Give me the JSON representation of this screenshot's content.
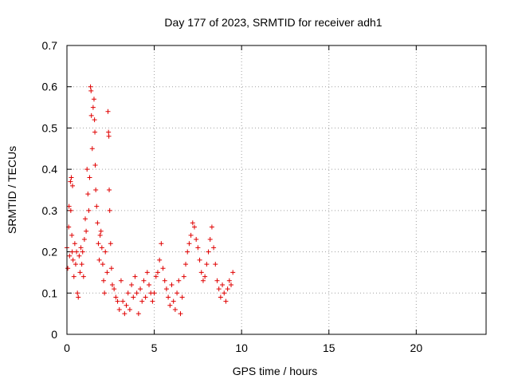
{
  "chart_data": {
    "type": "scatter",
    "title": "Day 177 of 2023, SRMTID for receiver adh1",
    "xlabel": "GPS time / hours",
    "ylabel": "SRMTID / TECUs",
    "xlim": [
      0,
      24
    ],
    "ylim": [
      0,
      0.7
    ],
    "xticks": [
      0,
      5,
      10,
      15,
      20
    ],
    "yticks": [
      0,
      0.1,
      0.2,
      0.3,
      0.4,
      0.5,
      0.6,
      0.7
    ],
    "xtick_labels": [
      "0",
      "5",
      "10",
      "15",
      "20"
    ],
    "ytick_labels": [
      "0",
      "0.1",
      "0.2",
      "0.3",
      "0.4",
      "0.5",
      "0.6",
      "0.7"
    ],
    "grid": true,
    "marker": "+",
    "color": "#e00000",
    "series": [
      {
        "name": "adh1",
        "points": [
          [
            0.0,
            0.21
          ],
          [
            0.05,
            0.16
          ],
          [
            0.1,
            0.26
          ],
          [
            0.12,
            0.31
          ],
          [
            0.15,
            0.19
          ],
          [
            0.2,
            0.37
          ],
          [
            0.22,
            0.3
          ],
          [
            0.25,
            0.38
          ],
          [
            0.28,
            0.24
          ],
          [
            0.3,
            0.2
          ],
          [
            0.32,
            0.36
          ],
          [
            0.35,
            0.18
          ],
          [
            0.4,
            0.14
          ],
          [
            0.45,
            0.22
          ],
          [
            0.5,
            0.17
          ],
          [
            0.55,
            0.2
          ],
          [
            0.6,
            0.1
          ],
          [
            0.65,
            0.09
          ],
          [
            0.7,
            0.19
          ],
          [
            0.75,
            0.15
          ],
          [
            0.8,
            0.21
          ],
          [
            0.85,
            0.17
          ],
          [
            0.9,
            0.2
          ],
          [
            0.95,
            0.14
          ],
          [
            1.0,
            0.23
          ],
          [
            1.05,
            0.28
          ],
          [
            1.1,
            0.25
          ],
          [
            1.15,
            0.4
          ],
          [
            1.2,
            0.34
          ],
          [
            1.25,
            0.3
          ],
          [
            1.3,
            0.38
          ],
          [
            1.35,
            0.6
          ],
          [
            1.38,
            0.59
          ],
          [
            1.4,
            0.53
          ],
          [
            1.45,
            0.45
          ],
          [
            1.5,
            0.55
          ],
          [
            1.55,
            0.57
          ],
          [
            1.58,
            0.52
          ],
          [
            1.6,
            0.49
          ],
          [
            1.62,
            0.41
          ],
          [
            1.65,
            0.35
          ],
          [
            1.7,
            0.31
          ],
          [
            1.75,
            0.27
          ],
          [
            1.8,
            0.22
          ],
          [
            1.85,
            0.18
          ],
          [
            1.9,
            0.24
          ],
          [
            1.95,
            0.25
          ],
          [
            2.0,
            0.21
          ],
          [
            2.05,
            0.17
          ],
          [
            2.1,
            0.13
          ],
          [
            2.15,
            0.1
          ],
          [
            2.2,
            0.2
          ],
          [
            2.3,
            0.15
          ],
          [
            2.35,
            0.54
          ],
          [
            2.38,
            0.49
          ],
          [
            2.4,
            0.48
          ],
          [
            2.42,
            0.35
          ],
          [
            2.45,
            0.3
          ],
          [
            2.5,
            0.22
          ],
          [
            2.55,
            0.16
          ],
          [
            2.6,
            0.12
          ],
          [
            2.7,
            0.11
          ],
          [
            2.8,
            0.09
          ],
          [
            2.9,
            0.08
          ],
          [
            3.0,
            0.06
          ],
          [
            3.1,
            0.13
          ],
          [
            3.2,
            0.08
          ],
          [
            3.3,
            0.05
          ],
          [
            3.4,
            0.07
          ],
          [
            3.5,
            0.1
          ],
          [
            3.6,
            0.06
          ],
          [
            3.7,
            0.12
          ],
          [
            3.8,
            0.09
          ],
          [
            3.9,
            0.14
          ],
          [
            4.0,
            0.1
          ],
          [
            4.1,
            0.05
          ],
          [
            4.2,
            0.11
          ],
          [
            4.3,
            0.08
          ],
          [
            4.4,
            0.13
          ],
          [
            4.5,
            0.09
          ],
          [
            4.6,
            0.15
          ],
          [
            4.7,
            0.12
          ],
          [
            4.8,
            0.1
          ],
          [
            4.9,
            0.08
          ],
          [
            5.0,
            0.1
          ],
          [
            5.1,
            0.14
          ],
          [
            5.2,
            0.15
          ],
          [
            5.3,
            0.18
          ],
          [
            5.4,
            0.22
          ],
          [
            5.5,
            0.16
          ],
          [
            5.6,
            0.13
          ],
          [
            5.7,
            0.11
          ],
          [
            5.8,
            0.09
          ],
          [
            5.9,
            0.07
          ],
          [
            6.0,
            0.12
          ],
          [
            6.1,
            0.08
          ],
          [
            6.2,
            0.06
          ],
          [
            6.3,
            0.1
          ],
          [
            6.4,
            0.13
          ],
          [
            6.5,
            0.05
          ],
          [
            6.6,
            0.09
          ],
          [
            6.7,
            0.14
          ],
          [
            6.8,
            0.17
          ],
          [
            6.9,
            0.2
          ],
          [
            7.0,
            0.22
          ],
          [
            7.1,
            0.24
          ],
          [
            7.2,
            0.27
          ],
          [
            7.3,
            0.26
          ],
          [
            7.4,
            0.23
          ],
          [
            7.5,
            0.21
          ],
          [
            7.6,
            0.18
          ],
          [
            7.7,
            0.15
          ],
          [
            7.8,
            0.13
          ],
          [
            7.9,
            0.14
          ],
          [
            8.0,
            0.17
          ],
          [
            8.1,
            0.2
          ],
          [
            8.2,
            0.23
          ],
          [
            8.3,
            0.26
          ],
          [
            8.4,
            0.21
          ],
          [
            8.5,
            0.17
          ],
          [
            8.6,
            0.13
          ],
          [
            8.7,
            0.11
          ],
          [
            8.8,
            0.09
          ],
          [
            8.9,
            0.12
          ],
          [
            9.0,
            0.1
          ],
          [
            9.1,
            0.08
          ],
          [
            9.2,
            0.11
          ],
          [
            9.3,
            0.13
          ],
          [
            9.4,
            0.12
          ],
          [
            9.5,
            0.15
          ]
        ]
      }
    ]
  }
}
